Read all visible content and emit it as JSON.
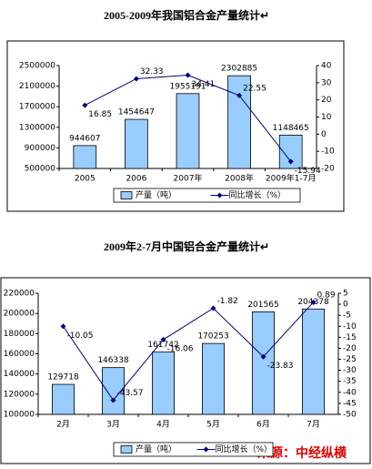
{
  "chart_data": [
    {
      "type": "bar",
      "title": "2005-2009年我国铝合金产量统计↵",
      "categories": [
        "2005",
        "2006",
        "2007年",
        "2008年",
        "2009年1-7月"
      ],
      "series": [
        {
          "name": "产量（吨）",
          "type": "bar",
          "color": "#99ccff",
          "values": [
            944607,
            1454647,
            1955191,
            2302885,
            1148465
          ]
        },
        {
          "name": "同比增长（%）",
          "type": "line",
          "axis": "y2",
          "color": "#000080",
          "values": [
            16.85,
            32.33,
            34.41,
            22.55,
            -15.94
          ]
        }
      ],
      "ylim": [
        500000,
        2500000
      ],
      "yticks": [
        500000,
        900000,
        1300000,
        1700000,
        2100000,
        2500000
      ],
      "y2lim": [
        -20,
        40
      ],
      "y2ticks": [
        -20,
        -10,
        0,
        10,
        20,
        30,
        40
      ],
      "legend": "bottom"
    },
    {
      "type": "bar",
      "title": "2009年2-7月中国铝合金产量统计↵",
      "categories": [
        "2月",
        "3月",
        "4月",
        "5月",
        "6月",
        "7月"
      ],
      "series": [
        {
          "name": "产量（吨）",
          "type": "bar",
          "color": "#99ccff",
          "values": [
            129718,
            146338,
            161742,
            170253,
            201565,
            204378
          ]
        },
        {
          "name": "同比增长（%）",
          "type": "line",
          "axis": "y2",
          "color": "#000080",
          "values": [
            -10.05,
            -43.57,
            -16.06,
            -1.82,
            -23.83,
            0.89
          ]
        }
      ],
      "ylim": [
        100000,
        220000
      ],
      "yticks": [
        100000,
        120000,
        140000,
        160000,
        180000,
        200000,
        220000
      ],
      "y2lim": [
        -50,
        5
      ],
      "y2ticks": [
        -50,
        -45,
        -40,
        -35,
        -30,
        -25,
        -20,
        -15,
        -10,
        -5,
        0,
        5
      ],
      "legend": "bottom",
      "watermark": "来源：中经纵横"
    }
  ]
}
